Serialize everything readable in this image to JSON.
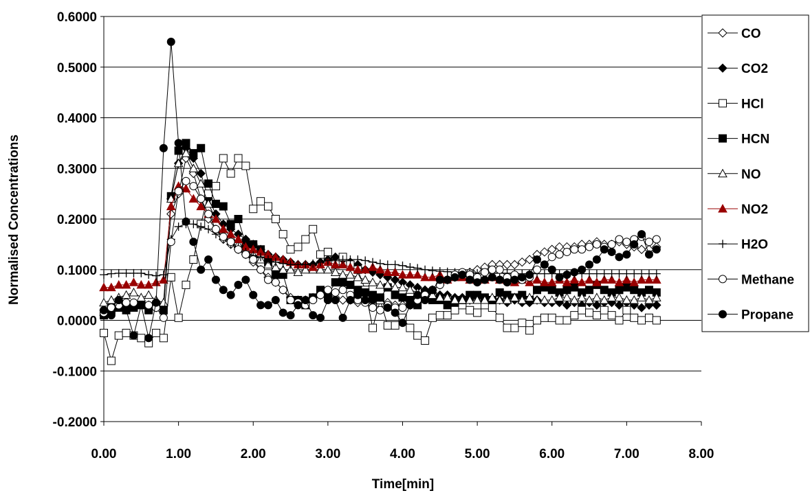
{
  "chart_data": {
    "type": "line",
    "xlabel": "Time[min]",
    "ylabel": "Normalised Concentrations",
    "xlim": [
      0,
      8
    ],
    "ylim": [
      -0.2,
      0.6
    ],
    "x_ticks": [
      "0.00",
      "1.00",
      "2.00",
      "3.00",
      "4.00",
      "5.00",
      "6.00",
      "7.00",
      "8.00"
    ],
    "y_ticks": [
      "-0.2000",
      "-0.1000",
      "0.0000",
      "0.1000",
      "0.2000",
      "0.3000",
      "0.4000",
      "0.5000",
      "0.6000"
    ],
    "grid": "horizontal",
    "legend_position": "right",
    "x": [
      0.0,
      0.1,
      0.2,
      0.3,
      0.4,
      0.5,
      0.6,
      0.7,
      0.8,
      0.9,
      1.0,
      1.1,
      1.2,
      1.3,
      1.4,
      1.5,
      1.6,
      1.7,
      1.8,
      1.9,
      2.0,
      2.1,
      2.2,
      2.3,
      2.4,
      2.5,
      2.6,
      2.7,
      2.8,
      2.9,
      3.0,
      3.1,
      3.2,
      3.3,
      3.4,
      3.5,
      3.6,
      3.7,
      3.8,
      3.9,
      4.0,
      4.1,
      4.2,
      4.3,
      4.4,
      4.5,
      4.6,
      4.7,
      4.8,
      4.9,
      5.0,
      5.1,
      5.2,
      5.3,
      5.4,
      5.5,
      5.6,
      5.7,
      5.8,
      5.9,
      6.0,
      6.1,
      6.2,
      6.3,
      6.4,
      6.5,
      6.6,
      6.7,
      6.8,
      6.9,
      7.0,
      7.1,
      7.2,
      7.3,
      7.4
    ],
    "series": [
      {
        "name": "CO",
        "marker": "diamond-open",
        "color": "#000000",
        "values": [
          0.02,
          0.025,
          0.03,
          0.025,
          0.03,
          0.035,
          0.03,
          0.025,
          0.03,
          0.21,
          0.25,
          0.32,
          0.29,
          0.24,
          0.2,
          0.18,
          0.16,
          0.15,
          0.14,
          0.13,
          0.115,
          0.1,
          0.085,
          0.075,
          0.06,
          0.045,
          0.04,
          0.04,
          0.045,
          0.05,
          0.05,
          0.045,
          0.04,
          0.04,
          0.035,
          0.04,
          0.035,
          0.03,
          0.035,
          0.03,
          0.03,
          0.03,
          0.04,
          0.05,
          0.06,
          0.07,
          0.08,
          0.085,
          0.09,
          0.095,
          0.1,
          0.105,
          0.11,
          0.11,
          0.11,
          0.11,
          0.115,
          0.12,
          0.13,
          0.135,
          0.14,
          0.145,
          0.145,
          0.145,
          0.15,
          0.15,
          0.155,
          0.15,
          0.15,
          0.155,
          0.15,
          0.145,
          0.14,
          0.14,
          0.145
        ]
      },
      {
        "name": "CO2",
        "marker": "diamond-filled",
        "color": "#000000",
        "values": [
          0.01,
          0.03,
          0.035,
          0.03,
          0.03,
          0.035,
          0.03,
          0.035,
          0.03,
          0.24,
          0.31,
          0.34,
          0.32,
          0.29,
          0.24,
          0.21,
          0.19,
          0.18,
          0.17,
          0.16,
          0.15,
          0.14,
          0.13,
          0.125,
          0.12,
          0.115,
          0.11,
          0.11,
          0.11,
          0.115,
          0.12,
          0.125,
          0.12,
          0.115,
          0.11,
          0.1,
          0.095,
          0.09,
          0.085,
          0.08,
          0.075,
          0.07,
          0.065,
          0.06,
          0.055,
          0.05,
          0.05,
          0.045,
          0.045,
          0.04,
          0.045,
          0.04,
          0.04,
          0.04,
          0.035,
          0.04,
          0.035,
          0.035,
          0.04,
          0.035,
          0.035,
          0.035,
          0.03,
          0.035,
          0.03,
          0.035,
          0.03,
          0.035,
          0.035,
          0.03,
          0.035,
          0.03,
          0.025,
          0.03,
          0.03
        ]
      },
      {
        "name": "HCl",
        "marker": "square-open",
        "color": "#000000",
        "values": [
          -0.025,
          -0.08,
          -0.03,
          -0.025,
          -0.03,
          -0.035,
          -0.045,
          -0.025,
          -0.035,
          0.085,
          0.005,
          0.07,
          0.12,
          0.19,
          0.25,
          0.265,
          0.32,
          0.29,
          0.32,
          0.305,
          0.22,
          0.235,
          0.225,
          0.2,
          0.17,
          0.14,
          0.145,
          0.16,
          0.18,
          0.13,
          0.135,
          0.11,
          0.125,
          0.11,
          0.1,
          0.06,
          -0.015,
          0.04,
          -0.01,
          -0.01,
          0.005,
          -0.015,
          -0.03,
          -0.04,
          0.005,
          0.01,
          0.01,
          0.02,
          0.03,
          0.02,
          0.015,
          0.03,
          0.025,
          0.005,
          -0.015,
          -0.015,
          -0.005,
          -0.02,
          0.0,
          0.005,
          0.005,
          0.0,
          0.0,
          0.01,
          0.02,
          0.015,
          0.01,
          0.02,
          0.01,
          0.0,
          0.02,
          0.005,
          0.0,
          0.005,
          0.0
        ]
      },
      {
        "name": "HCN",
        "marker": "square-filled",
        "color": "#000000",
        "values": [
          0.01,
          0.02,
          0.025,
          0.02,
          0.025,
          0.03,
          0.02,
          0.03,
          0.02,
          0.245,
          0.335,
          0.35,
          0.33,
          0.34,
          0.27,
          0.23,
          0.225,
          0.19,
          0.2,
          0.15,
          0.15,
          0.14,
          0.115,
          0.09,
          0.09,
          0.04,
          0.04,
          0.03,
          0.045,
          0.06,
          0.05,
          0.075,
          0.075,
          0.07,
          0.06,
          0.055,
          0.05,
          0.045,
          0.065,
          0.05,
          0.045,
          0.04,
          0.03,
          0.055,
          0.04,
          0.04,
          0.03,
          0.035,
          0.04,
          0.05,
          0.05,
          0.045,
          0.04,
          0.055,
          0.05,
          0.045,
          0.05,
          0.04,
          0.06,
          0.065,
          0.06,
          0.055,
          0.06,
          0.065,
          0.055,
          0.06,
          0.07,
          0.06,
          0.055,
          0.06,
          0.065,
          0.06,
          0.055,
          0.06,
          0.055
        ]
      },
      {
        "name": "NO",
        "marker": "triangle-open",
        "color": "#000000",
        "values": [
          0.035,
          0.04,
          0.045,
          0.05,
          0.055,
          0.045,
          0.05,
          0.04,
          0.035,
          0.24,
          0.31,
          0.33,
          0.3,
          0.27,
          0.23,
          0.2,
          0.18,
          0.165,
          0.15,
          0.14,
          0.13,
          0.12,
          0.11,
          0.105,
          0.1,
          0.1,
          0.095,
          0.1,
          0.1,
          0.1,
          0.1,
          0.095,
          0.09,
          0.09,
          0.085,
          0.08,
          0.075,
          0.07,
          0.07,
          0.065,
          0.065,
          0.06,
          0.055,
          0.05,
          0.05,
          0.045,
          0.045,
          0.04,
          0.04,
          0.04,
          0.04,
          0.04,
          0.045,
          0.04,
          0.04,
          0.045,
          0.04,
          0.045,
          0.04,
          0.04,
          0.04,
          0.045,
          0.045,
          0.04,
          0.045,
          0.04,
          0.045,
          0.04,
          0.045,
          0.045,
          0.04,
          0.04,
          0.045,
          0.04,
          0.045
        ]
      },
      {
        "name": "NO2",
        "marker": "triangle-filled",
        "color": "#990000",
        "values": [
          0.065,
          0.065,
          0.07,
          0.07,
          0.075,
          0.07,
          0.07,
          0.075,
          0.08,
          0.225,
          0.265,
          0.26,
          0.24,
          0.225,
          0.21,
          0.2,
          0.18,
          0.17,
          0.16,
          0.145,
          0.14,
          0.135,
          0.13,
          0.125,
          0.12,
          0.115,
          0.11,
          0.11,
          0.105,
          0.11,
          0.115,
          0.11,
          0.11,
          0.105,
          0.1,
          0.1,
          0.105,
          0.1,
          0.095,
          0.095,
          0.09,
          0.09,
          0.09,
          0.085,
          0.085,
          0.09,
          0.08,
          0.085,
          0.085,
          0.08,
          0.085,
          0.08,
          0.085,
          0.08,
          0.08,
          0.075,
          0.08,
          0.075,
          0.08,
          0.075,
          0.075,
          0.08,
          0.075,
          0.08,
          0.075,
          0.08,
          0.075,
          0.08,
          0.08,
          0.075,
          0.08,
          0.075,
          0.08,
          0.08,
          0.08
        ]
      },
      {
        "name": "H2O",
        "marker": "plus",
        "color": "#000000",
        "values": [
          0.09,
          0.092,
          0.093,
          0.093,
          0.093,
          0.093,
          0.09,
          0.088,
          0.09,
          0.16,
          0.185,
          0.19,
          0.19,
          0.185,
          0.18,
          0.17,
          0.16,
          0.15,
          0.145,
          0.135,
          0.128,
          0.125,
          0.12,
          0.115,
          0.112,
          0.11,
          0.11,
          0.11,
          0.112,
          0.115,
          0.118,
          0.12,
          0.12,
          0.12,
          0.12,
          0.118,
          0.115,
          0.112,
          0.11,
          0.11,
          0.108,
          0.105,
          0.103,
          0.1,
          0.098,
          0.097,
          0.096,
          0.095,
          0.095,
          0.094,
          0.093,
          0.093,
          0.093,
          0.093,
          0.093,
          0.092,
          0.092,
          0.092,
          0.092,
          0.092,
          0.092,
          0.092,
          0.092,
          0.092,
          0.092,
          0.092,
          0.092,
          0.092,
          0.092,
          0.092,
          0.092,
          0.092,
          0.092,
          0.092,
          0.092
        ]
      },
      {
        "name": "Methane",
        "marker": "circle-open",
        "color": "#000000",
        "values": [
          0.015,
          0.025,
          0.03,
          0.035,
          0.035,
          0.03,
          0.03,
          0.025,
          0.005,
          0.155,
          0.255,
          0.275,
          0.265,
          0.24,
          0.21,
          0.18,
          0.165,
          0.155,
          0.14,
          0.13,
          0.12,
          0.1,
          0.08,
          0.075,
          0.06,
          0.04,
          0.035,
          0.03,
          0.04,
          0.05,
          0.06,
          0.055,
          0.06,
          0.05,
          0.04,
          0.035,
          0.025,
          0.02,
          0.03,
          0.025,
          0.025,
          0.03,
          0.04,
          0.05,
          0.06,
          0.07,
          0.08,
          0.09,
          0.095,
          0.09,
          0.085,
          0.095,
          0.1,
          0.1,
          0.085,
          0.09,
          0.08,
          0.085,
          0.1,
          0.11,
          0.125,
          0.13,
          0.135,
          0.14,
          0.14,
          0.145,
          0.15,
          0.145,
          0.15,
          0.16,
          0.155,
          0.16,
          0.165,
          0.155,
          0.16
        ]
      },
      {
        "name": "Propane",
        "marker": "circle-filled",
        "color": "#000000",
        "values": [
          0.02,
          0.01,
          0.04,
          0.02,
          -0.03,
          0.03,
          -0.035,
          0.035,
          0.34,
          0.55,
          0.35,
          0.195,
          0.155,
          0.1,
          0.12,
          0.08,
          0.06,
          0.05,
          0.07,
          0.08,
          0.05,
          0.03,
          0.03,
          0.04,
          0.015,
          0.01,
          0.03,
          0.04,
          0.01,
          0.005,
          0.04,
          0.04,
          0.005,
          0.04,
          0.05,
          0.04,
          0.04,
          0.045,
          0.025,
          0.015,
          -0.005,
          0.03,
          0.05,
          0.04,
          0.06,
          0.08,
          0.08,
          0.085,
          0.09,
          0.08,
          0.075,
          0.08,
          0.085,
          0.08,
          0.075,
          0.08,
          0.085,
          0.09,
          0.12,
          0.11,
          0.1,
          0.085,
          0.09,
          0.095,
          0.1,
          0.11,
          0.12,
          0.14,
          0.135,
          0.125,
          0.13,
          0.15,
          0.17,
          0.13,
          0.14
        ]
      }
    ]
  }
}
